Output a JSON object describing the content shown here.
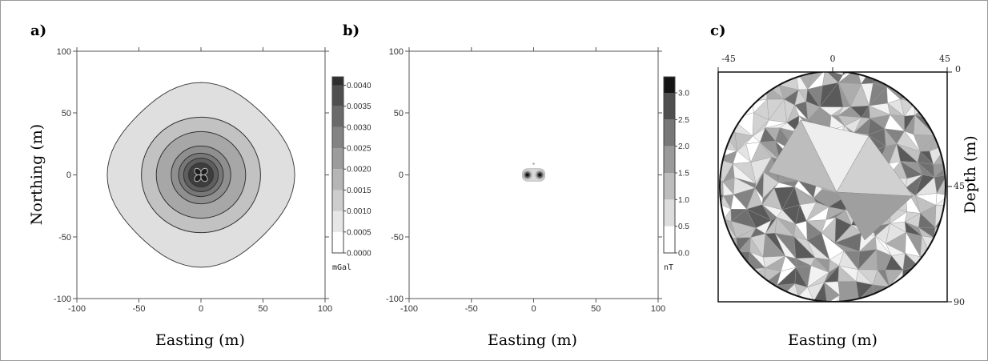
{
  "figure": {
    "panels": [
      {
        "letter": "a)",
        "xlabel": "Easting (m)",
        "ylabel": "Northing (m)",
        "x_ticks": [
          "-100",
          "-50",
          "0",
          "50",
          "100"
        ],
        "y_ticks": [
          "100",
          "50",
          "0",
          "-50",
          "-100"
        ],
        "colorbar_ticks": [
          "0.0040",
          "0.0035",
          "0.0030",
          "0.0025",
          "0.0020",
          "0.0015",
          "0.0010",
          "0.0005",
          "0.0000"
        ],
        "unit": "mGal"
      },
      {
        "letter": "b)",
        "xlabel": "Easting (m)",
        "x_ticks": [
          "-100",
          "-50",
          "0",
          "50",
          "100"
        ],
        "y_ticks": [
          "100",
          "50",
          "0",
          "-50",
          "-100"
        ],
        "colorbar_ticks": [
          "3.0",
          "2.5",
          "2.0",
          "1.5",
          "1.0",
          "0.5",
          "0.0"
        ],
        "unit": "nT"
      },
      {
        "letter": "c)",
        "xlabel": "Easting (m)",
        "ylabel": "Depth (m)",
        "top_ticks": [
          "-45",
          "0",
          "45"
        ],
        "right_ticks": [
          "0",
          "45",
          "90"
        ]
      }
    ]
  },
  "chart_data": [
    {
      "type": "heatmap",
      "title": "",
      "xlabel": "Easting (m)",
      "ylabel": "Northing (m)",
      "xlim": [
        -100,
        100
      ],
      "ylim": [
        -100,
        100
      ],
      "colorbar": {
        "label": "mGal",
        "range": [
          0,
          0.0042
        ],
        "ticks": [
          0.0,
          0.0005,
          0.001,
          0.0015,
          0.002,
          0.0025,
          0.003,
          0.0035,
          0.004
        ]
      },
      "contour_levels": [
        {
          "level": 0.0005,
          "radius_m": 73,
          "color": "#dfdfdf"
        },
        {
          "level": 0.001,
          "radius_m": 48,
          "color": "#c2c2c2"
        },
        {
          "level": 0.0015,
          "radius_m": 36,
          "color": "#a7a7a7"
        },
        {
          "level": 0.002,
          "radius_m": 24,
          "color": "#8f8f8f"
        },
        {
          "level": 0.0025,
          "radius_m": 18,
          "color": "#777777"
        },
        {
          "level": 0.003,
          "radius_m": 14,
          "color": "#5e5e5e"
        },
        {
          "level": 0.0035,
          "radius_m": 10,
          "color": "#3d3d3d"
        }
      ]
    },
    {
      "type": "heatmap",
      "title": "",
      "xlabel": "Easting (m)",
      "ylabel": "",
      "xlim": [
        -100,
        100
      ],
      "ylim": [
        -100,
        100
      ],
      "colorbar": {
        "label": "nT",
        "range": [
          0,
          3.3
        ],
        "ticks": [
          0.0,
          0.5,
          1.0,
          1.5,
          2.0,
          2.5,
          3.0
        ]
      },
      "peaks": [
        {
          "x": -5,
          "y": 0,
          "value": 3.2
        },
        {
          "x": 5,
          "y": 0,
          "value": 3.2
        }
      ]
    }
  ]
}
